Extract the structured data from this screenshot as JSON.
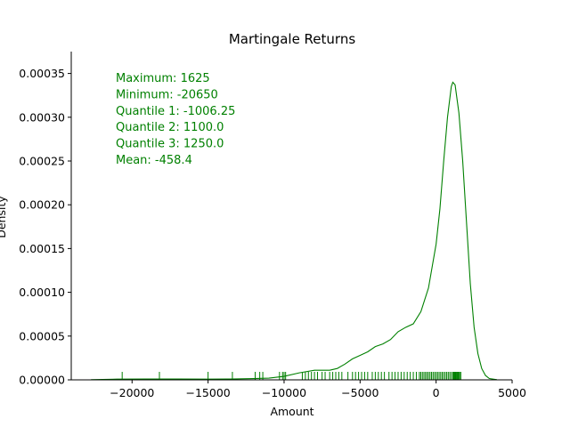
{
  "chart_data": {
    "type": "line",
    "title": "Martingale Returns",
    "xlabel": "Amount",
    "ylabel": "Density",
    "xlim": [
      -24000,
      5000
    ],
    "ylim": [
      0,
      0.000375
    ],
    "x_ticks": [
      -20000,
      -15000,
      -10000,
      -5000,
      0,
      5000
    ],
    "x_tick_labels": [
      "−20000",
      "−15000",
      "−10000",
      "−5000",
      "0",
      "5000"
    ],
    "y_ticks": [
      0,
      5e-05,
      0.0001,
      0.00015,
      0.0002,
      0.00025,
      0.0003,
      0.00035
    ],
    "y_tick_labels": [
      "0.00000",
      "0.00005",
      "0.00010",
      "0.00015",
      "0.00020",
      "0.00025",
      "0.00030",
      "0.00035"
    ],
    "grid": false,
    "color": "#008000",
    "series": [
      {
        "x": [
          -22700,
          -21000,
          -19000,
          -17000,
          -15000,
          -13500,
          -12000,
          -11000,
          -10000,
          -9000,
          -8000,
          -7000,
          -6500,
          -6000,
          -5500,
          -5000,
          -4500,
          -4000,
          -3500,
          -3000,
          -2500,
          -2000,
          -1500,
          -1000,
          -500,
          0,
          250,
          500,
          750,
          1000,
          1100,
          1250,
          1500,
          1750,
          2000,
          2250,
          2500,
          2750,
          3000,
          3250,
          3500,
          4000
        ],
        "y": [
          2e-07,
          8e-07,
          1e-06,
          1e-06,
          8e-07,
          1e-06,
          1.5e-06,
          2e-06,
          4e-06,
          8e-06,
          1.1e-05,
          1.1e-05,
          1.3e-05,
          1.8e-05,
          2.4e-05,
          2.8e-05,
          3.2e-05,
          3.8e-05,
          4.1e-05,
          4.6e-05,
          5.5e-05,
          6e-05,
          6.4e-05,
          7.8e-05,
          0.000105,
          0.000155,
          0.000195,
          0.00025,
          0.0003,
          0.000335,
          0.00034,
          0.000337,
          0.000305,
          0.00025,
          0.00018,
          0.00011,
          6e-05,
          3e-05,
          1.3e-05,
          5e-06,
          1.5e-06,
          2e-07
        ]
      }
    ],
    "rug": [
      -20650,
      -18200,
      -15000,
      -13400,
      -11900,
      -11600,
      -11400,
      -10300,
      -10100,
      -10000,
      -9900,
      -8800,
      -8600,
      -8400,
      -8200,
      -8000,
      -7800,
      -7500,
      -7300,
      -7000,
      -6800,
      -6600,
      -6400,
      -6200,
      -5800,
      -5500,
      -5300,
      -5100,
      -4900,
      -4700,
      -4500,
      -4200,
      -4000,
      -3800,
      -3600,
      -3400,
      -3100,
      -2900,
      -2700,
      -2500,
      -2300,
      -2100,
      -1900,
      -1700,
      -1500,
      -1300,
      -1100,
      -1006.25,
      -900,
      -800,
      -700,
      -600,
      -500,
      -400,
      -300,
      -200,
      -100,
      0,
      100,
      200,
      300,
      400,
      500,
      600,
      700,
      800,
      900,
      1000,
      1100,
      1150,
      1200,
      1250,
      1300,
      1350,
      1400,
      1450,
      1500,
      1550,
      1625
    ],
    "annotations": [
      "Maximum: 1625",
      "Minimum: -20650",
      "Quantile 1: -1006.25",
      "Quantile 2: 1100.0",
      "Quantile 3: 1250.0",
      "Mean: -458.4"
    ]
  }
}
